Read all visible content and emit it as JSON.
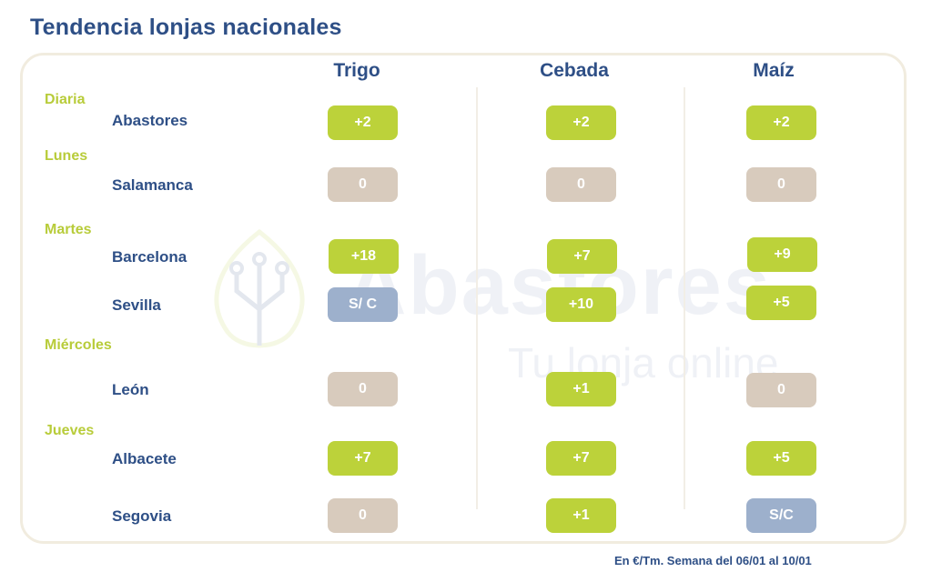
{
  "title": "Tendencia lonjas nacionales",
  "columns": [
    "Trigo",
    "Cebada",
    "Maíz"
  ],
  "days": {
    "diaria": "Diaria",
    "lunes": "Lunes",
    "martes": "Martes",
    "miercoles": "Miércoles",
    "jueves": "Jueves"
  },
  "rows": [
    {
      "city": "Abastores",
      "trigo": "+2",
      "cebada": "+2",
      "maiz": "+2"
    },
    {
      "city": "Salamanca",
      "trigo": "0",
      "cebada": "0",
      "maiz": "0"
    },
    {
      "city": "Barcelona",
      "trigo": "+18",
      "cebada": "+7",
      "maiz": "+9"
    },
    {
      "city": "Sevilla",
      "trigo": "S/ C",
      "cebada": "+10",
      "maiz": "+5"
    },
    {
      "city": "León",
      "trigo": "0",
      "cebada": "+1",
      "maiz": "0"
    },
    {
      "city": "Albacete",
      "trigo": "+7",
      "cebada": "+7",
      "maiz": "+5"
    },
    {
      "city": "Segovia",
      "trigo": "0",
      "cebada": "+1",
      "maiz": "S/C"
    }
  ],
  "watermark": {
    "brand": "Abastores",
    "tagline": "Tu lonja online"
  },
  "footnote": "En €/Tm. Semana del 06/01 al 10/01",
  "colors": {
    "up": "#bcd23a",
    "zero": "#d8cbbd",
    "no_quote": "#9db0cc",
    "heading": "#2e4f86",
    "day": "#b8cc3a"
  }
}
